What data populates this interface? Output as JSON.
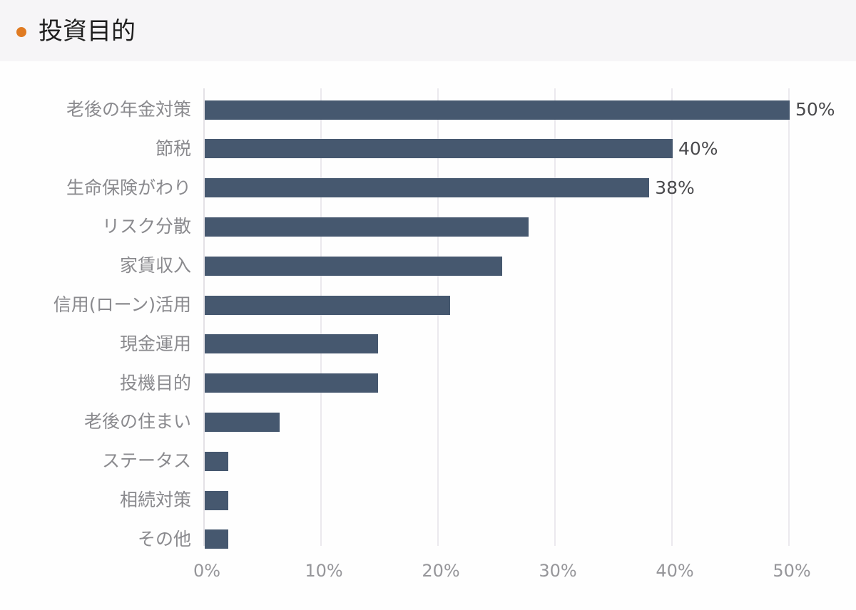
{
  "header": {
    "title": "投資目的",
    "dot_color": "#e07b22"
  },
  "chart_data": {
    "type": "bar",
    "orientation": "horizontal",
    "title": "投資目的",
    "xlabel": "",
    "ylabel": "",
    "xlim": [
      0,
      50
    ],
    "x_ticks": [
      "0%",
      "10%",
      "20%",
      "30%",
      "40%",
      "50%"
    ],
    "grid": true,
    "legend": null,
    "bar_color": "#46586f",
    "categories": [
      "老後の年金対策",
      "節税",
      "生命保険がわり",
      "リスク分散",
      "家賃収入",
      "信用(ローン)活用",
      "現金運用",
      "投機目的",
      "老後の住まい",
      "ステータス",
      "相続対策",
      "その他"
    ],
    "values": [
      50,
      40,
      38,
      27.7,
      25.4,
      21,
      14.8,
      14.8,
      6.4,
      2,
      2,
      2
    ],
    "data_labels": [
      "50%",
      "40%",
      "38%",
      null,
      null,
      null,
      null,
      null,
      null,
      null,
      null,
      null
    ]
  }
}
